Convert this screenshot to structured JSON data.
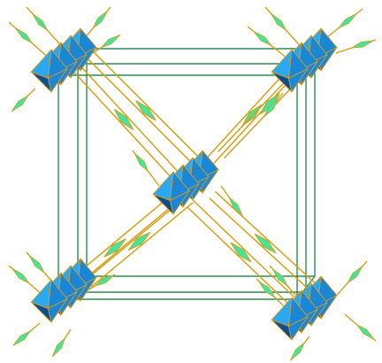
{
  "diagram": {
    "subject": "crystal-structure-polyhedra",
    "colors": {
      "background": "#ffffff",
      "cell_edge": "#2e8b57",
      "bond_outline": "#d4a017",
      "bond_fill": "#d4a017",
      "ligand_tip": "#3ee6a0",
      "octahedron_light": "#2aa9f0",
      "octahedron_mid": "#1a86d6",
      "octahedron_dark": "#0a4f8f",
      "octahedron_edge": "#d99a1b"
    },
    "clusters": [
      "top-left",
      "top-right",
      "center",
      "bottom-left",
      "bottom-right"
    ],
    "octahedra_per_cluster": 4
  }
}
